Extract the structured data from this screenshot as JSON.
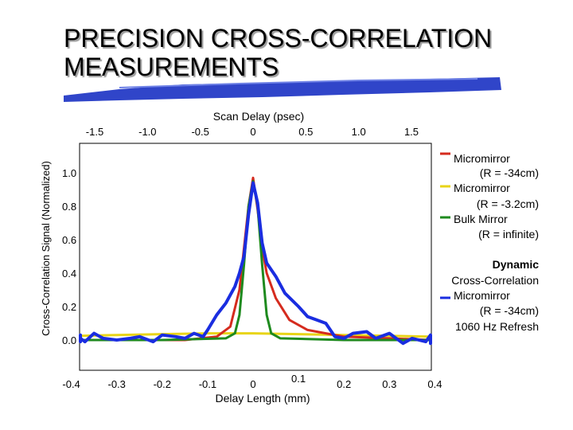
{
  "slide": {
    "title_line1": "PRECISION CROSS-CORRELATION",
    "title_line2": "MEASUREMENTS"
  },
  "chart_data": {
    "type": "line",
    "ylabel": "Cross-Correlation Signal (Normalized)",
    "x_top_label": "Scan Delay (psec)",
    "x_bottom_label": "Delay Length (mm)",
    "y_ticks": [
      "1.0",
      "0.8",
      "0.6",
      "0.4",
      "0.2",
      "0.0"
    ],
    "y_tick_values": [
      1.0,
      0.8,
      0.6,
      0.4,
      0.2,
      0.0
    ],
    "ylim": [
      -0.05,
      1.12
    ],
    "top_ticks": [
      "-1.5",
      "-1.0",
      "-0.5",
      "0",
      "0.5",
      "1.0",
      "1.5"
    ],
    "top_tick_values": [
      -1.5,
      -1.0,
      -0.5,
      0,
      0.5,
      1.0,
      1.5
    ],
    "bottom_ticks": [
      "-0.4",
      "-0.3",
      "-0.2",
      "-0.1",
      "0",
      "0.1",
      "0.2",
      "0.3",
      "0.4"
    ],
    "bottom_tick_values": [
      -0.4,
      -0.3,
      -0.2,
      -0.1,
      0,
      0.1,
      0.2,
      0.3,
      0.4
    ],
    "xlim_mm": [
      -0.52,
      0.54
    ],
    "series": [
      {
        "label_line1": "Micromirror",
        "label_line2": "(R = -34cm)",
        "color": "#d52b1e",
        "x": [
          -0.52,
          -0.45,
          -0.35,
          -0.25,
          -0.15,
          -0.08,
          -0.05,
          -0.03,
          -0.02,
          -0.01,
          0,
          0.01,
          0.02,
          0.03,
          0.05,
          0.08,
          0.12,
          0.2,
          0.3,
          0.4,
          0.5,
          0.54
        ],
        "y": [
          0.0,
          0.0,
          0.0,
          0.0,
          0.0,
          0.02,
          0.08,
          0.3,
          0.55,
          0.8,
          0.97,
          0.78,
          0.55,
          0.4,
          0.25,
          0.12,
          0.06,
          0.02,
          0.01,
          0.0,
          0.0,
          0.0
        ]
      },
      {
        "label_line1": "Micromirror",
        "label_line2": "(R = -3.2cm)",
        "color": "#e8d417",
        "x": [
          -0.52,
          -0.4,
          -0.3,
          -0.2,
          -0.1,
          0,
          0.1,
          0.2,
          0.3,
          0.4,
          0.54
        ],
        "y": [
          0.02,
          0.025,
          0.03,
          0.035,
          0.04,
          0.04,
          0.035,
          0.03,
          0.025,
          0.02,
          0.02
        ]
      },
      {
        "label_line1": "Bulk Mirror",
        "label_line2": "(R = infinite)",
        "color": "#1e8a1e",
        "x": [
          -0.52,
          -0.2,
          -0.06,
          -0.04,
          -0.03,
          -0.02,
          -0.01,
          0,
          0.01,
          0.02,
          0.03,
          0.04,
          0.06,
          0.2,
          0.54
        ],
        "y": [
          0.0,
          0.0,
          0.01,
          0.04,
          0.15,
          0.45,
          0.8,
          0.95,
          0.8,
          0.45,
          0.15,
          0.04,
          0.01,
          0.0,
          0.0
        ]
      },
      {
        "label_line1": "Micromirror",
        "label_line2": "(R = -34cm)",
        "color": "#1a2de0",
        "x": [
          -0.52,
          -0.5,
          -0.47,
          -0.45,
          -0.42,
          -0.4,
          -0.37,
          -0.35,
          -0.33,
          -0.3,
          -0.27,
          -0.25,
          -0.22,
          -0.2,
          -0.17,
          -0.15,
          -0.13,
          -0.11,
          -0.1,
          -0.08,
          -0.06,
          -0.04,
          -0.03,
          -0.02,
          -0.01,
          0,
          0.01,
          0.02,
          0.03,
          0.05,
          0.07,
          0.1,
          0.12,
          0.14,
          0.16,
          0.18,
          0.2,
          0.22,
          0.25,
          0.27,
          0.3,
          0.33,
          0.35,
          0.38,
          0.4,
          0.43,
          0.45,
          0.48,
          0.5,
          0.54
        ],
        "y": [
          0.0,
          0.03,
          -0.01,
          0.02,
          0.0,
          0.01,
          -0.01,
          0.04,
          0.01,
          0.0,
          0.01,
          0.02,
          -0.01,
          0.03,
          0.02,
          0.01,
          0.04,
          0.02,
          0.06,
          0.15,
          0.22,
          0.32,
          0.4,
          0.5,
          0.75,
          0.94,
          0.82,
          0.58,
          0.46,
          0.38,
          0.28,
          0.2,
          0.14,
          0.12,
          0.1,
          0.02,
          0.01,
          0.04,
          0.05,
          0.01,
          0.04,
          -0.02,
          0.01,
          -0.01,
          0.03,
          -0.02,
          0.02,
          0.03,
          0.0,
          0.0
        ]
      }
    ],
    "dynamic_label_bold": "Dynamic",
    "dynamic_label": "Cross-Correlation",
    "refresh_label": "1060 Hz Refresh"
  }
}
